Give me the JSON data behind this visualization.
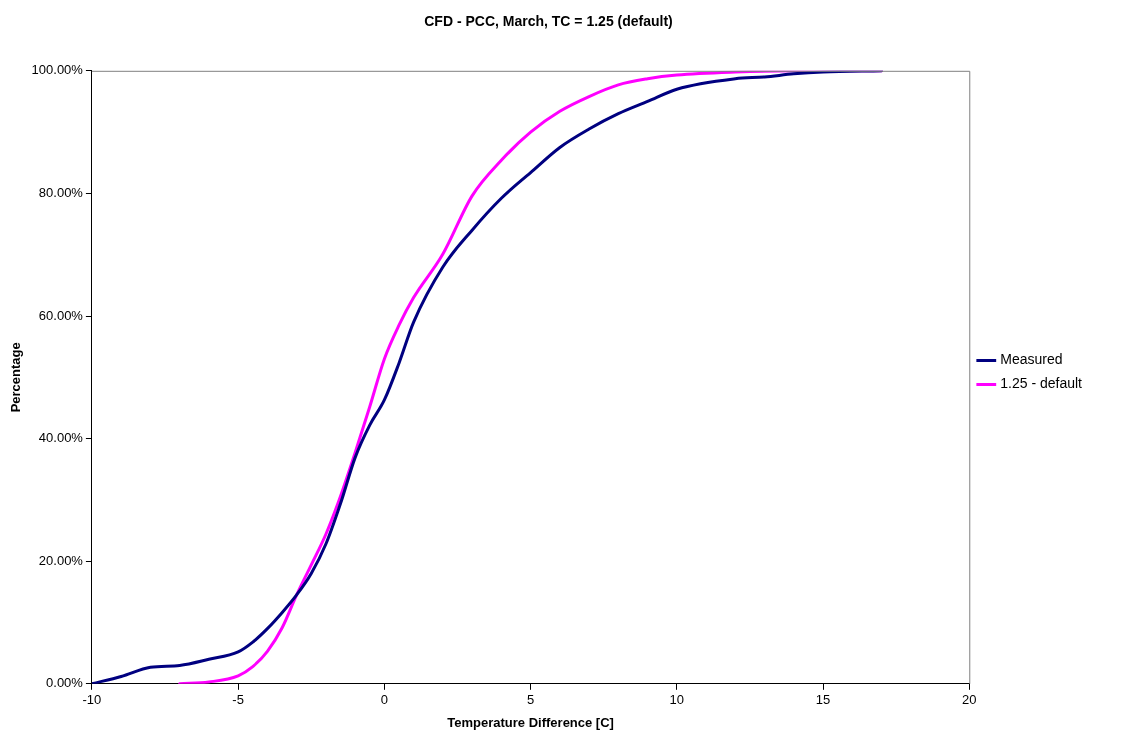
{
  "chart_data": {
    "type": "line",
    "title": "CFD - PCC, March, TC = 1.25 (default)",
    "xlabel": "Temperature Difference [C]",
    "ylabel": "Percentage",
    "xlim": [
      -10,
      20
    ],
    "xticks": [
      -10,
      -5,
      0,
      5,
      10,
      15,
      20
    ],
    "ylim": [
      0,
      100
    ],
    "yticks": [
      {
        "value": 0,
        "label": "0.00%"
      },
      {
        "value": 20,
        "label": "20.00%"
      },
      {
        "value": 40,
        "label": "40.00%"
      },
      {
        "value": 60,
        "label": "60.00%"
      },
      {
        "value": 80,
        "label": "80.00%"
      },
      {
        "value": 100,
        "label": "100.00%"
      }
    ],
    "grid": false,
    "legend": "right",
    "marker": "none",
    "line_style": "solid",
    "series": [
      {
        "name": "Measured",
        "color": "#000080",
        "x": [
          -10,
          -9,
          -8,
          -7,
          -6,
          -5,
          -4.5,
          -4,
          -3.5,
          -3,
          -2.5,
          -2,
          -1.5,
          -1,
          -0.5,
          0,
          0.5,
          1,
          2,
          3,
          4,
          5,
          6,
          7,
          8,
          9,
          10,
          12,
          13,
          14,
          15,
          17
        ],
        "values": [
          0,
          1.2,
          2.7,
          3,
          4,
          5.2,
          6.8,
          9,
          11.6,
          14.5,
          18,
          22.8,
          29.4,
          36.9,
          42.2,
          46.3,
          52.3,
          59,
          68,
          74,
          79.2,
          83.4,
          87.5,
          90.5,
          93,
          95,
          97,
          98.7,
          99,
          99.5,
          99.8,
          100
        ]
      },
      {
        "name": "1.25 - default",
        "color": "#ff00ff",
        "x": [
          -7,
          -6,
          -5,
          -4.5,
          -4,
          -3.5,
          -3,
          -2.5,
          -2,
          -1.5,
          -1,
          -0.5,
          0,
          0.5,
          1,
          2,
          3,
          4,
          5,
          6,
          7,
          8,
          9,
          10,
          12,
          14,
          17
        ],
        "values": [
          0,
          0.3,
          1.3,
          2.8,
          5.3,
          9.1,
          14.5,
          19.4,
          24.4,
          30.6,
          37.7,
          45.2,
          53,
          58.5,
          63,
          70.1,
          79.6,
          85.4,
          90,
          93.4,
          95.8,
          97.7,
          98.7,
          99.3,
          99.8,
          100,
          100
        ]
      }
    ]
  }
}
